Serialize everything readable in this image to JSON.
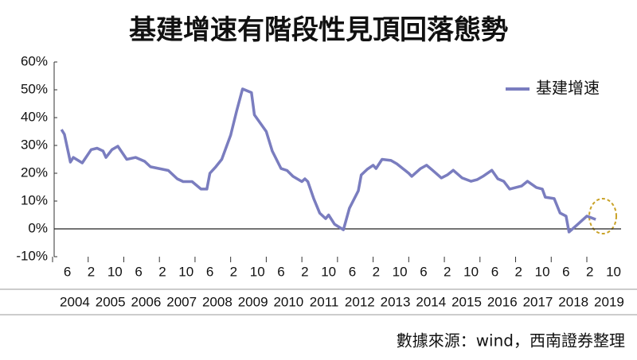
{
  "chart_data": {
    "type": "line",
    "title": "基建增速有階段性見頂回落態勢",
    "source": "數據來源：wind，西南證券整理",
    "x": [
      "2004-04",
      "2004-05",
      "2004-07",
      "2004-08",
      "2004-11",
      "2005-02",
      "2005-04",
      "2005-06",
      "2005-07",
      "2005-09",
      "2005-11",
      "2006-02",
      "2006-05",
      "2006-08",
      "2006-10",
      "2007-04",
      "2007-07",
      "2007-09",
      "2007-12",
      "2008-03",
      "2008-05",
      "2008-06",
      "2008-08",
      "2008-10",
      "2009-01",
      "2009-03",
      "2009-05",
      "2009-08",
      "2009-09",
      "2010-01",
      "2010-03",
      "2010-06",
      "2010-08",
      "2010-10",
      "2011-01",
      "2011-02",
      "2011-03",
      "2011-05",
      "2011-07",
      "2011-09",
      "2011-10",
      "2011-12",
      "2012-03",
      "2012-05",
      "2012-08",
      "2012-09",
      "2012-11",
      "2013-01",
      "2013-02",
      "2013-04",
      "2013-07",
      "2013-09",
      "2013-11",
      "2014-01",
      "2014-02",
      "2014-05",
      "2014-07",
      "2014-09",
      "2014-12",
      "2015-02",
      "2015-04",
      "2015-07",
      "2015-10",
      "2015-12",
      "2016-02",
      "2016-05",
      "2016-07",
      "2016-09",
      "2016-11",
      "2017-03",
      "2017-05",
      "2017-08",
      "2017-10",
      "2017-11",
      "2018-02",
      "2018-04",
      "2018-06",
      "2018-07",
      "2018-10",
      "2019-01",
      "2019-04"
    ],
    "series": [
      {
        "name": "基建增速",
        "color": "#7a7dbf",
        "values": [
          35.7,
          34,
          24,
          25.7,
          23.7,
          28.5,
          29,
          28,
          25.7,
          28.5,
          29.7,
          25,
          25.7,
          24.3,
          22.3,
          21,
          18,
          17,
          17,
          14.3,
          14.3,
          20,
          22.3,
          25,
          33.7,
          42.3,
          50.3,
          49,
          41,
          35,
          28,
          21.7,
          21,
          18.9,
          17,
          18,
          17,
          10.9,
          5.7,
          3.7,
          5,
          1.7,
          -0.3,
          7.4,
          13.7,
          19.4,
          21.4,
          22.9,
          21.7,
          25,
          24.6,
          23.4,
          21.7,
          20,
          18.9,
          21.7,
          22.9,
          21.1,
          18.3,
          19.4,
          21.1,
          18.3,
          17.1,
          17.7,
          18.9,
          21.1,
          18,
          17.1,
          14.3,
          15.4,
          17.1,
          14.9,
          14.3,
          11.4,
          10.9,
          5.7,
          4.6,
          -1.1,
          1.7,
          4.6,
          3.4
        ]
      }
    ],
    "xlim": [
      "2004-01",
      "2019-12"
    ],
    "xticks": [
      {
        "value": "2004-06",
        "label": "6"
      },
      {
        "value": "2005-02",
        "label": "2"
      },
      {
        "value": "2005-10",
        "label": "10"
      },
      {
        "value": "2006-06",
        "label": "6"
      },
      {
        "value": "2007-02",
        "label": "2"
      },
      {
        "value": "2007-10",
        "label": "10"
      },
      {
        "value": "2008-06",
        "label": "6"
      },
      {
        "value": "2009-02",
        "label": "2"
      },
      {
        "value": "2009-10",
        "label": "10"
      },
      {
        "value": "2010-06",
        "label": "6"
      },
      {
        "value": "2011-02",
        "label": "2"
      },
      {
        "value": "2011-10",
        "label": "10"
      },
      {
        "value": "2012-06",
        "label": "6"
      },
      {
        "value": "2013-02",
        "label": "2"
      },
      {
        "value": "2013-10",
        "label": "10"
      },
      {
        "value": "2014-06",
        "label": "6"
      },
      {
        "value": "2015-02",
        "label": "2"
      },
      {
        "value": "2015-10",
        "label": "10"
      },
      {
        "value": "2016-06",
        "label": "6"
      },
      {
        "value": "2017-02",
        "label": "2"
      },
      {
        "value": "2017-10",
        "label": "10"
      },
      {
        "value": "2018-06",
        "label": "6"
      },
      {
        "value": "2019-02",
        "label": "2"
      },
      {
        "value": "2019-10",
        "label": "10"
      }
    ],
    "years": [
      "2004",
      "2005",
      "2006",
      "2007",
      "2008",
      "2009",
      "2010",
      "2011",
      "2012",
      "2013",
      "2014",
      "2015",
      "2016",
      "2017",
      "2018",
      "2019"
    ],
    "ylim": [
      -10,
      60
    ],
    "yticks": [
      {
        "value": -10,
        "label": "-10%"
      },
      {
        "value": 0,
        "label": "0%"
      },
      {
        "value": 10,
        "label": "10%"
      },
      {
        "value": 20,
        "label": "20%"
      },
      {
        "value": 30,
        "label": "30%"
      },
      {
        "value": 40,
        "label": "40%"
      },
      {
        "value": 50,
        "label": "50%"
      },
      {
        "value": 60,
        "label": "60%"
      }
    ],
    "legend": "top-right"
  }
}
